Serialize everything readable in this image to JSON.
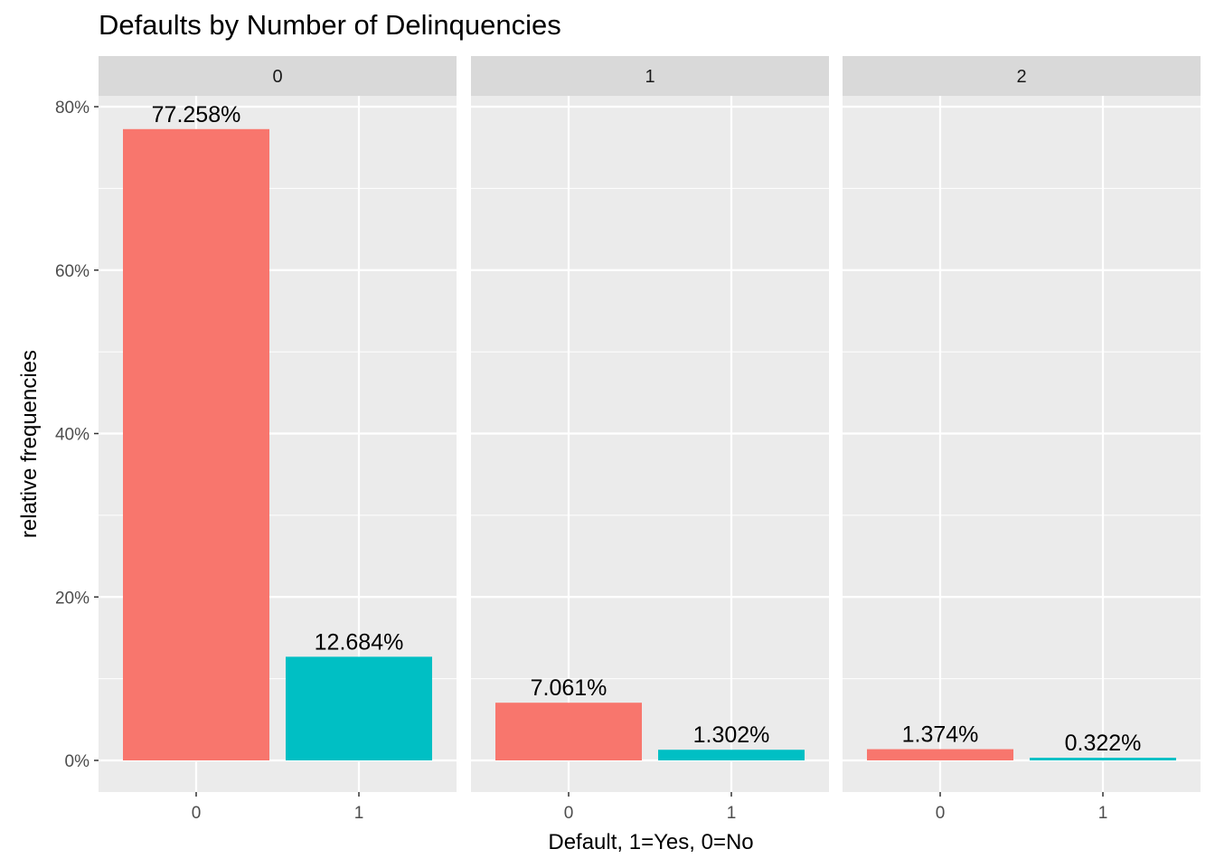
{
  "chart_data": {
    "type": "bar",
    "title": "Defaults by Number of Delinquencies",
    "xlabel": "Default, 1=Yes, 0=No",
    "ylabel": "relative frequencies",
    "ylim": [
      -0.04,
      0.83
    ],
    "y_ticks": [
      0,
      0.2,
      0.4,
      0.6,
      0.8
    ],
    "y_tick_labels": [
      "0%",
      "20%",
      "40%",
      "60%",
      "80%"
    ],
    "categories": [
      "0",
      "1"
    ],
    "colors": {
      "0": "#F8766D",
      "1": "#00BFC4"
    },
    "panel_background": "#EBEBEB",
    "strip_background": "#D9D9D9",
    "grid": true,
    "legend": "none",
    "facets": [
      {
        "strip": "0",
        "values": [
          0.77258,
          0.12684
        ],
        "labels": [
          "77.258%",
          "12.684%"
        ]
      },
      {
        "strip": "1",
        "values": [
          0.07061,
          0.01302
        ],
        "labels": [
          "7.061%",
          "1.302%"
        ]
      },
      {
        "strip": "2",
        "values": [
          0.01374,
          0.00322
        ],
        "labels": [
          "1.374%",
          "0.322%"
        ]
      }
    ]
  }
}
